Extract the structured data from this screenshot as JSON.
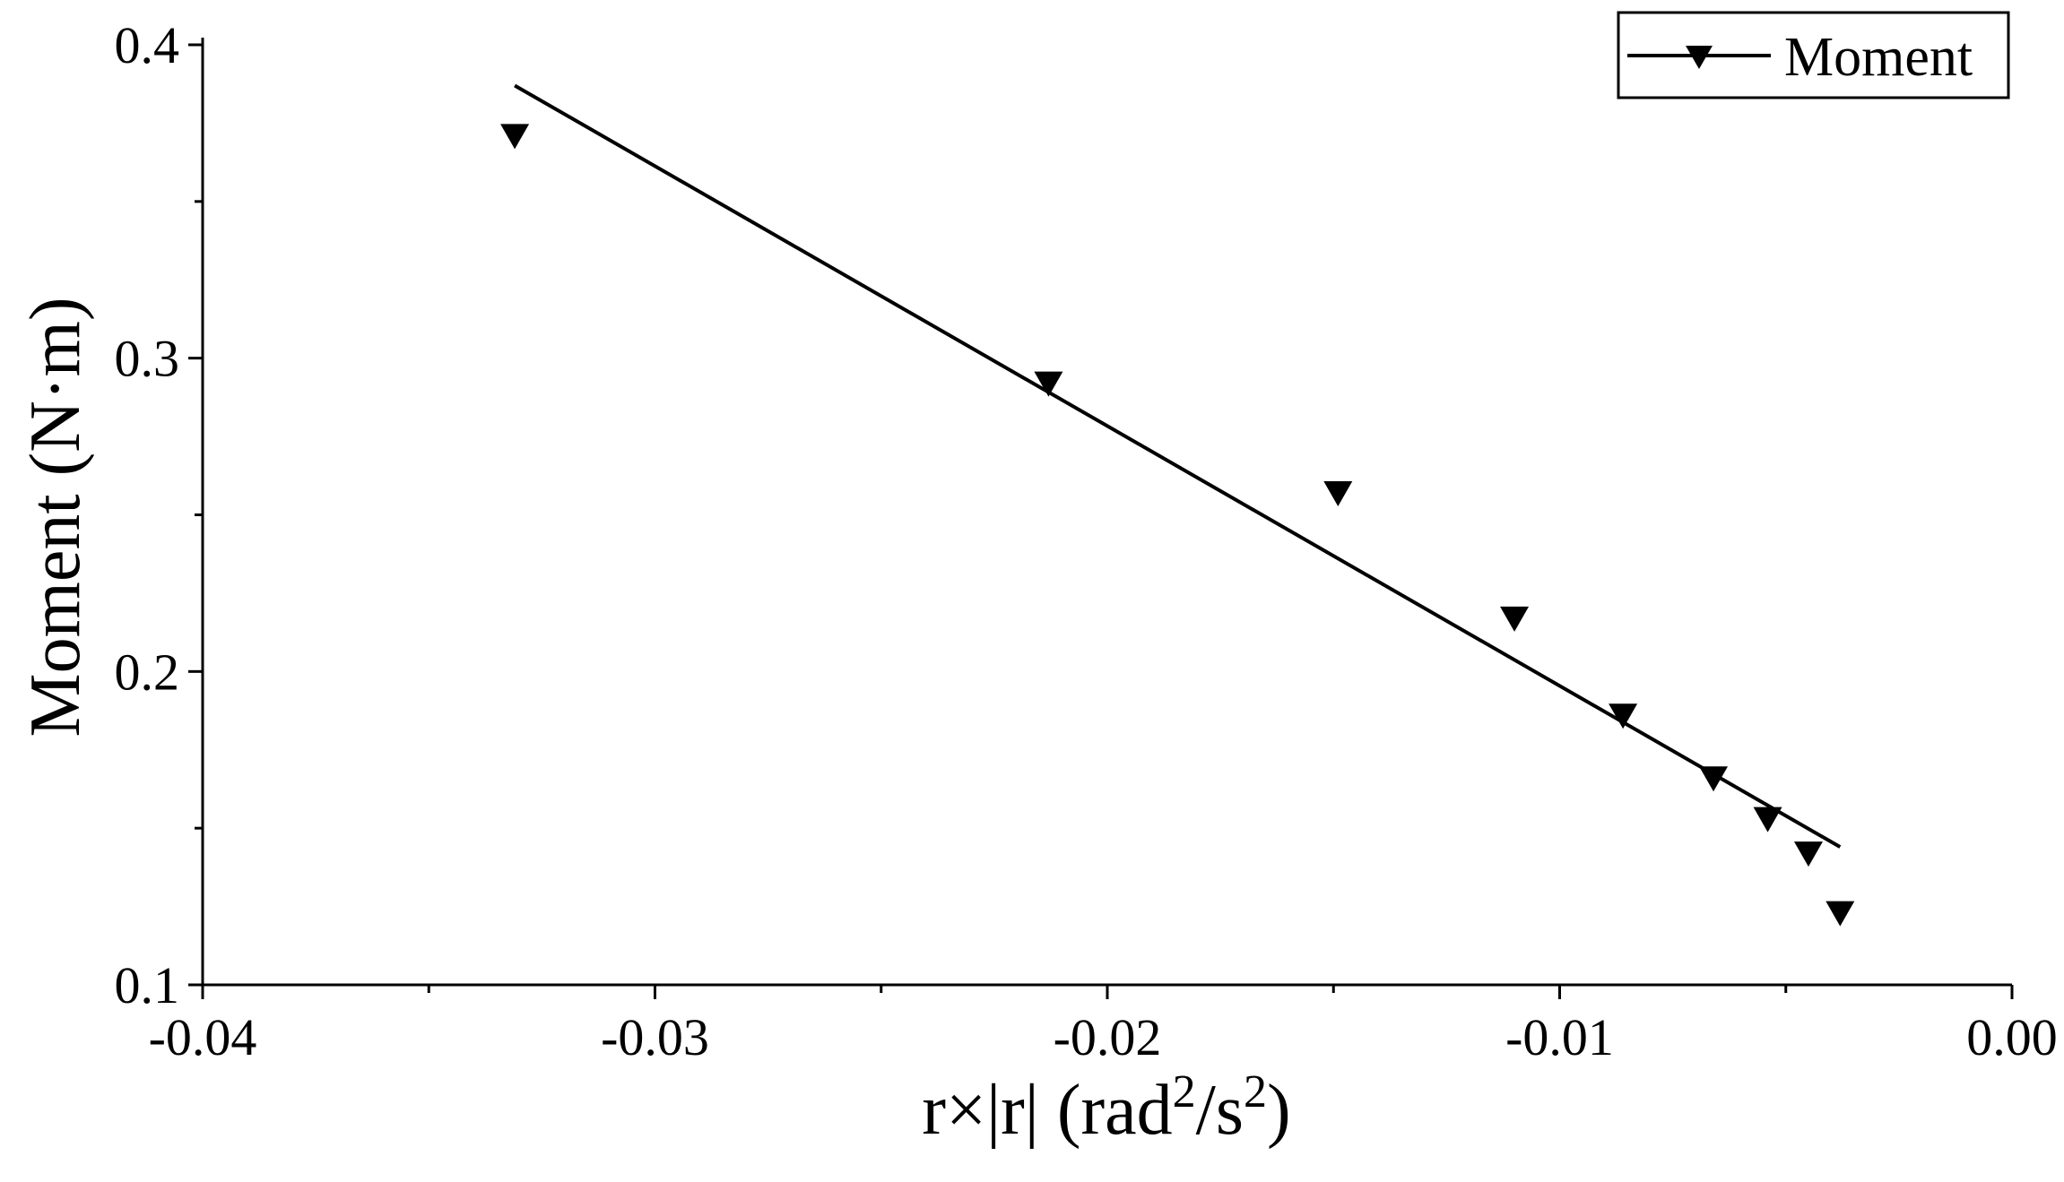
{
  "chart_data": {
    "type": "scatter",
    "xlabel": {
      "base": "r×|r| (rad",
      "sup1": "2",
      "mid": "/s",
      "sup2": "2",
      "end": ")"
    },
    "ylabel": "Moment (N·m)",
    "xlim": [
      -0.04,
      0.0
    ],
    "ylim": [
      0.1,
      0.4
    ],
    "x_ticks": [
      -0.04,
      -0.03,
      -0.02,
      -0.01,
      0.0
    ],
    "x_tick_labels": [
      "-0.04",
      "-0.03",
      "-0.02",
      "-0.01",
      "0.00"
    ],
    "x_minor_ticks": [
      -0.035,
      -0.025,
      -0.015,
      -0.005
    ],
    "y_ticks": [
      0.1,
      0.2,
      0.3,
      0.4
    ],
    "y_tick_labels": [
      "0.1",
      "0.2",
      "0.3",
      "0.4"
    ],
    "y_minor_ticks": [
      0.15,
      0.25,
      0.35
    ],
    "grid": false,
    "legend_position": "top-right",
    "series": [
      {
        "name": "Moment",
        "marker": "down-triangle",
        "color": "#000000",
        "points": [
          {
            "x": -0.0331,
            "y": 0.371
          },
          {
            "x": -0.0213,
            "y": 0.292
          },
          {
            "x": -0.0149,
            "y": 0.257
          },
          {
            "x": -0.011,
            "y": 0.217
          },
          {
            "x": -0.0086,
            "y": 0.186
          },
          {
            "x": -0.0066,
            "y": 0.166
          },
          {
            "x": -0.0054,
            "y": 0.153
          },
          {
            "x": -0.0045,
            "y": 0.142
          },
          {
            "x": -0.0038,
            "y": 0.123
          }
        ]
      }
    ],
    "fit_line": {
      "x": [
        -0.0331,
        -0.0038
      ],
      "y": [
        0.387,
        0.144
      ]
    }
  }
}
